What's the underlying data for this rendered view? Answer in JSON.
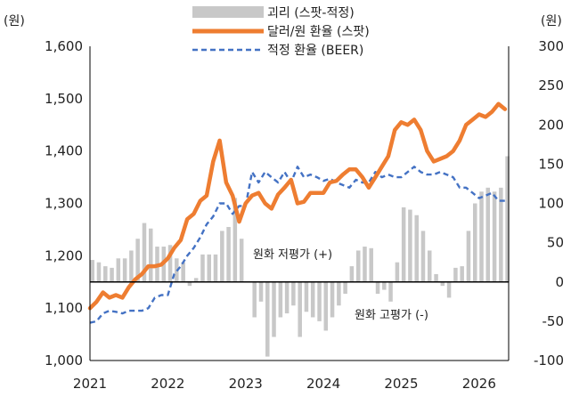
{
  "chart_data": {
    "type": "line",
    "left_unit_label": "(원)",
    "right_unit_label": "(원)",
    "left_axis": {
      "min": 1000,
      "max": 1600,
      "ticks": [
        "1,000",
        "1,100",
        "1,200",
        "1,300",
        "1,400",
        "1,500",
        "1,600"
      ]
    },
    "right_axis": {
      "min": -100,
      "max": 300,
      "ticks": [
        "-100",
        "-50",
        "0",
        "50",
        "100",
        "150",
        "200",
        "250",
        "300"
      ]
    },
    "x_ticks": [
      "2021",
      "2022",
      "2023",
      "2024",
      "2025",
      "2026"
    ],
    "x_range": [
      2021.0,
      2026.38
    ],
    "legend_placement": "top-center",
    "grid": false,
    "colors": {
      "bars": "#c8c8c8",
      "spot": "#ee7d31",
      "beer": "#4472c4",
      "zero_line": "#000000"
    },
    "series": [
      {
        "name": "괴리 (스팟-적정)",
        "type": "bar",
        "axis": "right",
        "x": [
          2021.0,
          2021.083,
          2021.167,
          2021.25,
          2021.333,
          2021.417,
          2021.5,
          2021.583,
          2021.667,
          2021.75,
          2021.833,
          2021.917,
          2022.0,
          2022.083,
          2022.167,
          2022.25,
          2022.333,
          2022.417,
          2022.5,
          2022.583,
          2022.667,
          2022.75,
          2022.833,
          2022.917,
          2023.0,
          2023.083,
          2023.167,
          2023.25,
          2023.333,
          2023.417,
          2023.5,
          2023.583,
          2023.667,
          2023.75,
          2023.833,
          2023.917,
          2024.0,
          2024.083,
          2024.167,
          2024.25,
          2024.333,
          2024.417,
          2024.5,
          2024.583,
          2024.667,
          2024.75,
          2024.833,
          2024.917,
          2025.0,
          2025.083,
          2025.167,
          2025.25,
          2025.333,
          2025.417,
          2025.5,
          2025.583,
          2025.667,
          2025.75,
          2025.833,
          2025.917,
          2026.0,
          2026.083,
          2026.167,
          2026.25,
          2026.333
        ],
        "values": [
          28,
          25,
          20,
          18,
          30,
          30,
          40,
          55,
          75,
          68,
          45,
          45,
          47,
          30,
          25,
          -5,
          5,
          35,
          35,
          35,
          65,
          70,
          107,
          55,
          0,
          -45,
          -25,
          -95,
          -70,
          -45,
          -40,
          -30,
          -70,
          -38,
          -45,
          -50,
          -62,
          -45,
          -30,
          -15,
          20,
          40,
          45,
          43,
          -15,
          -10,
          -25,
          25,
          95,
          92,
          85,
          65,
          40,
          10,
          -5,
          -20,
          18,
          20,
          65,
          100,
          115,
          120,
          115,
          120,
          160
        ]
      },
      {
        "name": "달러/원 환율 (스팟)",
        "type": "line",
        "axis": "left",
        "x": [
          2021.0,
          2021.083,
          2021.167,
          2021.25,
          2021.333,
          2021.417,
          2021.5,
          2021.583,
          2021.667,
          2021.75,
          2021.833,
          2021.917,
          2022.0,
          2022.083,
          2022.167,
          2022.25,
          2022.333,
          2022.417,
          2022.5,
          2022.583,
          2022.667,
          2022.75,
          2022.833,
          2022.917,
          2023.0,
          2023.083,
          2023.167,
          2023.25,
          2023.333,
          2023.417,
          2023.5,
          2023.583,
          2023.667,
          2023.75,
          2023.833,
          2023.917,
          2024.0,
          2024.083,
          2024.167,
          2024.25,
          2024.333,
          2024.417,
          2024.5,
          2024.583,
          2024.667,
          2024.75,
          2024.833,
          2024.917,
          2025.0,
          2025.083,
          2025.167,
          2025.25,
          2025.333,
          2025.417,
          2025.5,
          2025.583,
          2025.667,
          2025.75,
          2025.833,
          2025.917,
          2026.0,
          2026.083,
          2026.167,
          2026.25,
          2026.333
        ],
        "values": [
          1100,
          1112,
          1130,
          1120,
          1125,
          1120,
          1140,
          1155,
          1165,
          1180,
          1180,
          1183,
          1195,
          1215,
          1230,
          1270,
          1280,
          1305,
          1315,
          1380,
          1420,
          1340,
          1315,
          1265,
          1300,
          1315,
          1320,
          1300,
          1290,
          1317,
          1330,
          1345,
          1300,
          1303,
          1320,
          1320,
          1320,
          1340,
          1343,
          1355,
          1365,
          1365,
          1350,
          1330,
          1350,
          1370,
          1390,
          1440,
          1455,
          1450,
          1460,
          1440,
          1400,
          1380,
          1385,
          1390,
          1400,
          1420,
          1450,
          1460,
          1470,
          1465,
          1475,
          1490,
          1480
        ]
      },
      {
        "name": "적정 환율 (BEER)",
        "type": "line",
        "axis": "left",
        "dashed": true,
        "x": [
          2021.0,
          2021.083,
          2021.167,
          2021.25,
          2021.333,
          2021.417,
          2021.5,
          2021.583,
          2021.667,
          2021.75,
          2021.833,
          2021.917,
          2022.0,
          2022.083,
          2022.167,
          2022.25,
          2022.333,
          2022.417,
          2022.5,
          2022.583,
          2022.667,
          2022.75,
          2022.833,
          2022.917,
          2023.0,
          2023.083,
          2023.167,
          2023.25,
          2023.333,
          2023.417,
          2023.5,
          2023.583,
          2023.667,
          2023.75,
          2023.833,
          2023.917,
          2024.0,
          2024.083,
          2024.167,
          2024.25,
          2024.333,
          2024.417,
          2024.5,
          2024.583,
          2024.667,
          2024.75,
          2024.833,
          2024.917,
          2025.0,
          2025.083,
          2025.167,
          2025.25,
          2025.333,
          2025.417,
          2025.5,
          2025.583,
          2025.667,
          2025.75,
          2025.833,
          2025.917,
          2026.0,
          2026.083,
          2026.167,
          2026.25,
          2026.333
        ],
        "values": [
          1072,
          1075,
          1090,
          1095,
          1093,
          1090,
          1095,
          1095,
          1095,
          1100,
          1120,
          1125,
          1125,
          1165,
          1180,
          1200,
          1215,
          1235,
          1260,
          1275,
          1300,
          1300,
          1280,
          1295,
          1295,
          1360,
          1340,
          1360,
          1350,
          1340,
          1360,
          1340,
          1370,
          1350,
          1355,
          1350,
          1343,
          1347,
          1340,
          1335,
          1330,
          1345,
          1340,
          1340,
          1360,
          1350,
          1355,
          1350,
          1350,
          1360,
          1370,
          1360,
          1355,
          1355,
          1360,
          1355,
          1350,
          1330,
          1330,
          1320,
          1310,
          1315,
          1320,
          1305,
          1305
        ]
      }
    ],
    "annotations": [
      "원화 저평가 (+)",
      "원화 고평가 (-)"
    ]
  }
}
